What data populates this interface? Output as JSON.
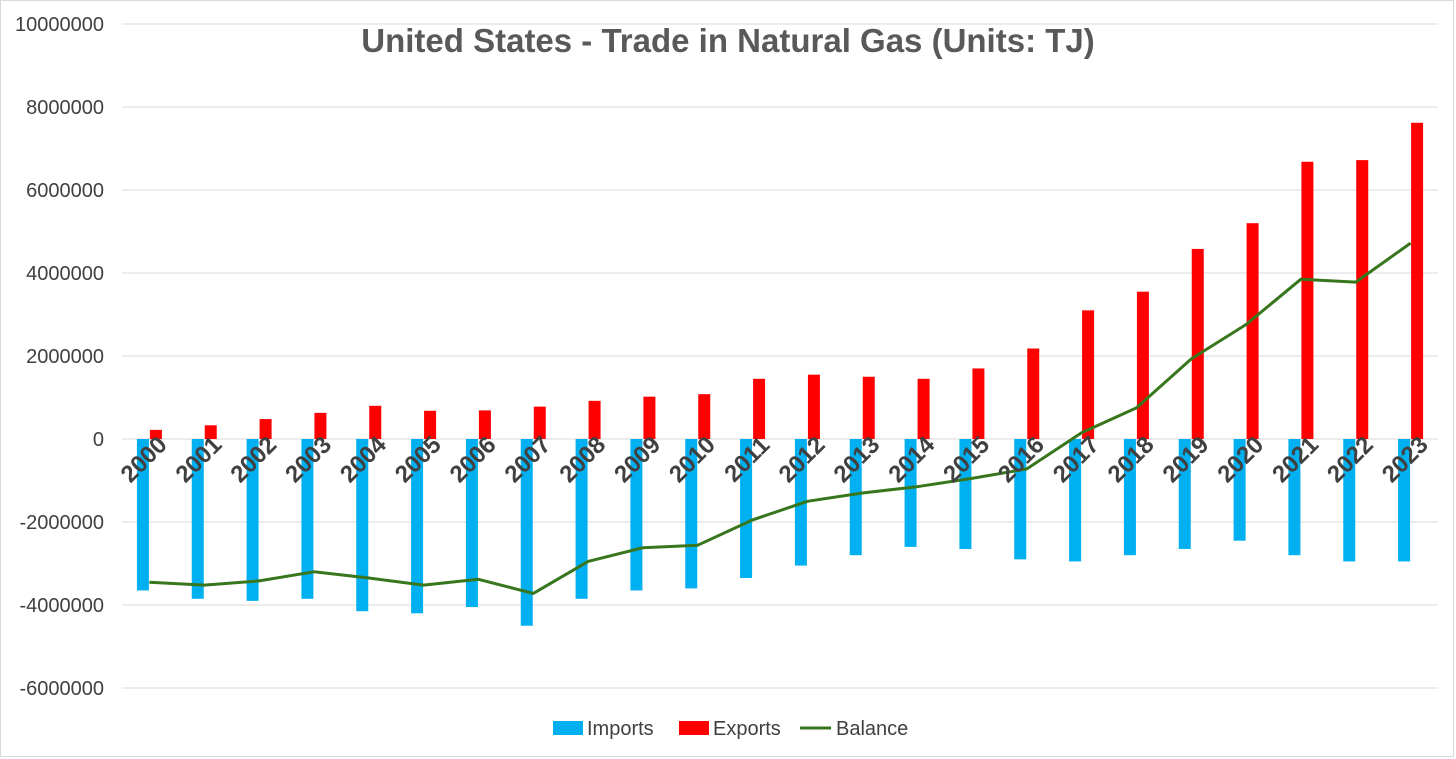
{
  "chart_data": {
    "type": "bar",
    "title": "United States - Trade in Natural Gas (Units: TJ)",
    "xlabel": "",
    "ylabel": "",
    "ylim": [
      -6000000,
      10000000
    ],
    "y_ticks": [
      10000000,
      8000000,
      6000000,
      4000000,
      2000000,
      0,
      -2000000,
      -4000000,
      -6000000
    ],
    "y_tick_labels": [
      "10000000",
      "8000000",
      "6000000",
      "4000000",
      "2000000",
      "0",
      "-2000000",
      "-4000000",
      "-6000000"
    ],
    "grid": true,
    "legend_position": "bottom",
    "categories": [
      "2000",
      "2001",
      "2002",
      "2003",
      "2004",
      "2005",
      "2006",
      "2007",
      "2008",
      "2009",
      "2010",
      "2011",
      "2012",
      "2013",
      "2014",
      "2015",
      "2016",
      "2017",
      "2018",
      "2019",
      "2020",
      "2021",
      "2022",
      "2023"
    ],
    "series": [
      {
        "name": "Imports",
        "type": "bar",
        "color": "#00b0f0",
        "values": [
          -3650000,
          -3850000,
          -3900000,
          -3850000,
          -4150000,
          -4200000,
          -4050000,
          -4500000,
          -3850000,
          -3650000,
          -3600000,
          -3350000,
          -3050000,
          -2800000,
          -2600000,
          -2650000,
          -2900000,
          -2950000,
          -2800000,
          -2650000,
          -2450000,
          -2800000,
          -2950000,
          -2950000
        ]
      },
      {
        "name": "Exports",
        "type": "bar",
        "color": "#ff0000",
        "values": [
          220000,
          330000,
          480000,
          630000,
          800000,
          680000,
          690000,
          780000,
          920000,
          1020000,
          1080000,
          1450000,
          1550000,
          1500000,
          1450000,
          1700000,
          2180000,
          3100000,
          3550000,
          4580000,
          5200000,
          6680000,
          6720000,
          7620000
        ]
      },
      {
        "name": "Balance",
        "type": "line",
        "color": "#38761d",
        "values": [
          -3450000,
          -3520000,
          -3420000,
          -3200000,
          -3350000,
          -3520000,
          -3380000,
          -3720000,
          -2950000,
          -2620000,
          -2560000,
          -1950000,
          -1500000,
          -1300000,
          -1150000,
          -950000,
          -720000,
          150000,
          750000,
          1930000,
          2760000,
          3850000,
          3780000,
          4720000
        ]
      }
    ]
  }
}
